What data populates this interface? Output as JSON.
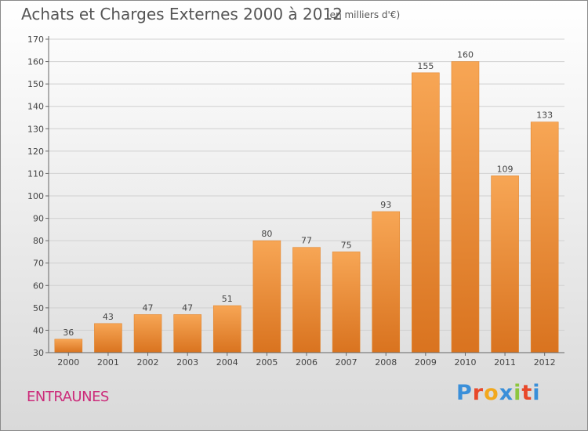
{
  "header": {
    "title": "Achats et Charges Externes 2000 à 2012",
    "subtitle": "(en milliers d'€)"
  },
  "footer": {
    "commune": "ENTRAUNES",
    "logo_text": "Proxiti",
    "logo_colors": [
      "#3a8fd9",
      "#e8482a",
      "#f2a81d",
      "#3a8fd9",
      "#8dc63f",
      "#e8482a",
      "#3a8fd9"
    ]
  },
  "colors": {
    "bar_top": "#f7a655",
    "bar_bottom": "#d9731f",
    "bar_edge": "#e2862f",
    "grid": "#d0d0d0",
    "axis": "#666666",
    "text": "#444444"
  },
  "chart_data": {
    "type": "bar",
    "title": "Achats et Charges Externes 2000 à 2012",
    "subtitle": "(en milliers d'€)",
    "categories": [
      "2000",
      "2001",
      "2002",
      "2003",
      "2004",
      "2005",
      "2006",
      "2007",
      "2008",
      "2009",
      "2010",
      "2011",
      "2012"
    ],
    "values": [
      36,
      43,
      47,
      47,
      51,
      80,
      77,
      75,
      93,
      155,
      160,
      109,
      133
    ],
    "ylim": [
      30,
      170
    ],
    "yticks": [
      30,
      40,
      50,
      60,
      70,
      80,
      90,
      100,
      110,
      120,
      130,
      140,
      150,
      160,
      170
    ],
    "grid": true,
    "data_labels": true
  }
}
